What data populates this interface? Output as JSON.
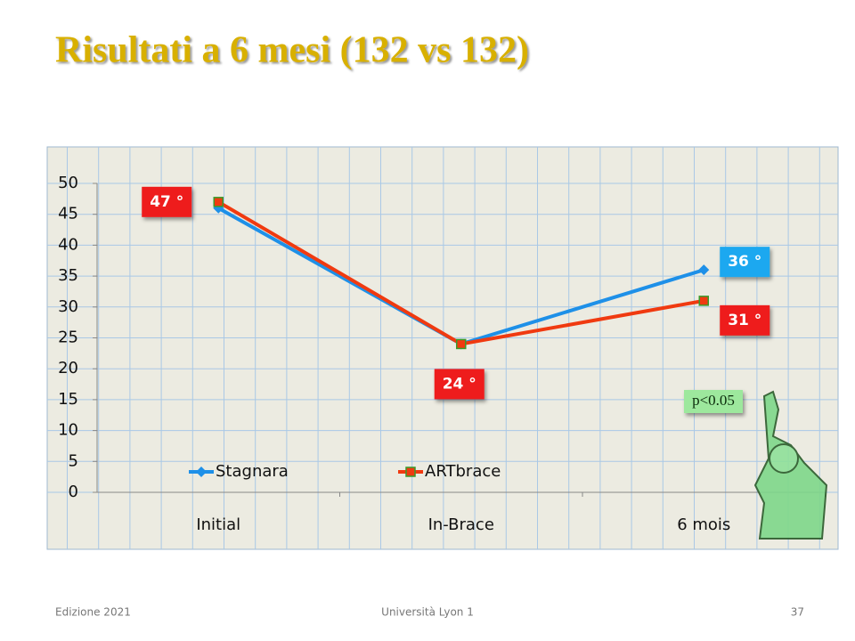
{
  "title": "Risultati a 6 mesi (132 vs 132)",
  "footer": {
    "left": "Edizione 2021",
    "center": "Università Lyon 1",
    "right": "37"
  },
  "chart_data": {
    "type": "line",
    "categories": [
      "Initial",
      "In-Brace",
      "6 mois"
    ],
    "series": [
      {
        "name": "Stagnara",
        "color": "#1e90e8",
        "marker": "diamond",
        "values": [
          46,
          24,
          36
        ],
        "value_labels": [
          null,
          null,
          "36 °"
        ],
        "label_color": "#1aa8f0"
      },
      {
        "name": "ARTbrace",
        "color": "#f03a10",
        "marker": "square",
        "values": [
          47,
          24,
          31
        ],
        "value_labels": [
          "47 °",
          "24 °",
          "31 °"
        ],
        "label_color": "#ee1c1c"
      }
    ],
    "ylim": [
      0,
      50
    ],
    "yticks": [
      0,
      5,
      10,
      15,
      20,
      25,
      30,
      35,
      40,
      45,
      50
    ],
    "grid": true,
    "legend": "bottom",
    "annotation": "p<0.05"
  }
}
